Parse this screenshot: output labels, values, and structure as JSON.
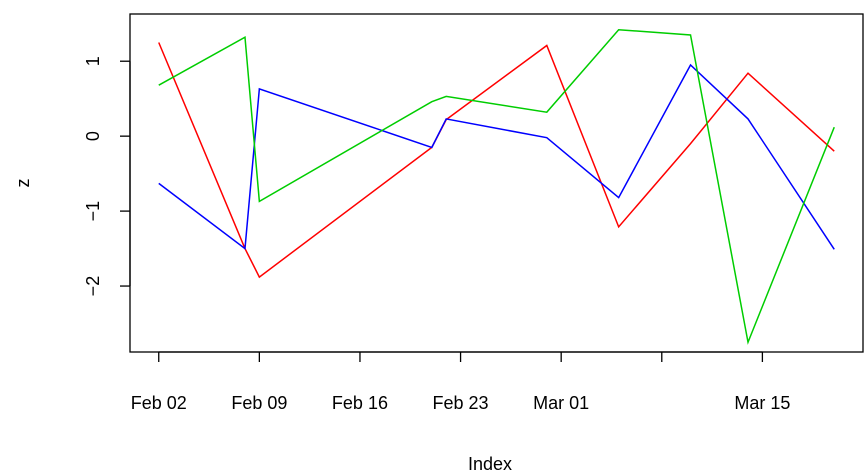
{
  "chart_data": {
    "type": "line",
    "x_label": "Index",
    "y_label": "z",
    "x": [
      "Feb 02",
      "Feb 08",
      "Feb 09",
      "Feb 21",
      "Feb 22",
      "Feb 29",
      "Mar 05",
      "Mar 10",
      "Mar 14",
      "Mar 20"
    ],
    "series": [
      {
        "color": "#ff0000",
        "values": [
          1.25,
          -1.5,
          -1.88,
          -0.15,
          0.22,
          1.21,
          -1.21,
          -0.1,
          0.84,
          -0.2
        ]
      },
      {
        "color": "#0000ff",
        "values": [
          -0.63,
          -1.5,
          0.63,
          -0.15,
          0.23,
          -0.02,
          -0.82,
          0.95,
          0.23,
          -1.51
        ]
      },
      {
        "color": "#00cd00",
        "values": [
          0.68,
          1.32,
          -0.87,
          0.46,
          0.53,
          0.32,
          1.42,
          1.35,
          -2.75,
          0.12
        ]
      }
    ],
    "xlim": [
      "Jan 31",
      "Mar 22"
    ],
    "xticks": [
      "Feb 02",
      "Feb 09",
      "Feb 16",
      "Feb 23",
      "Mar 01",
      {
        "value": "Mar 08",
        "label": null
      },
      "Mar 15"
    ],
    "ylim": [
      -2.88,
      1.63
    ],
    "yticks": [
      {
        "value": -2,
        "label": "−2"
      },
      {
        "value": -1,
        "label": "−1"
      },
      0,
      1
    ]
  }
}
